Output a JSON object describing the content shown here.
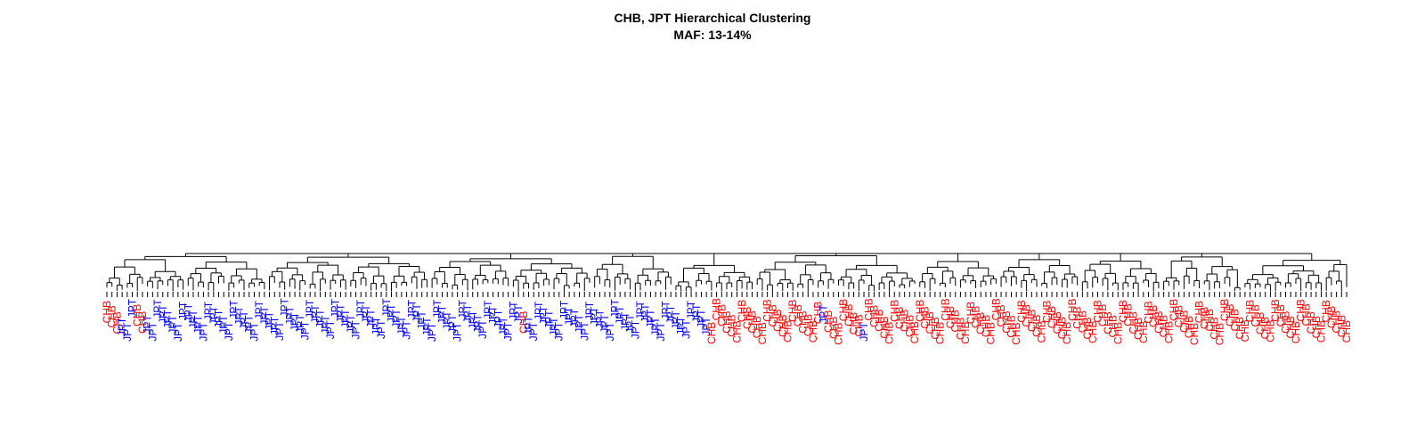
{
  "title_line1": "CHB, JPT Hierarchical Clustering",
  "title_line2": "MAF: 13-14%",
  "colors": {
    "CHB": "#ff0000",
    "JPT": "#0000ff",
    "branch": "#000000"
  },
  "leaves": "CHB CHB CHB JPT JPT JPT CHB CHB JPT JPT JPT JPT JPT JPT JPT JPT JPT JPT JPT JPT JPT JPT JPT JPT JPT JPT JPT JPT JPT JPT JPT JPT JPT JPT JPT JPT JPT JPT JPT JPT JPT JPT JPT JPT JPT JPT JPT JPT JPT JPT JPT JPT JPT JPT JPT JPT JPT JPT JPT JPT JPT JPT JPT JPT JPT JPT JPT JPT JPT JPT JPT JPT JPT JPT JPT JPT JPT JPT JPT JPT JPT JPT CHB JPT JPT JPT JPT JPT JPT JPT JPT JPT JPT JPT JPT JPT JPT JPT JPT JPT JPT JPT JPT JPT JPT JPT JPT JPT JPT JPT JPT JPT JPT JPT JPT JPT JPT JPT JPT CHB CHB CHB CHB CHB CHB CHB CHB CHB CHB CHB CHB CHB CHB CHB CHB CHB CHB CHB CHB CHB CHB JPT CHB CHB CHB CHB CHB CHB CHB JPT CHB CHB CHB CHB CHB CHB CHB CHB CHB CHB CHB CHB CHB CHB CHB CHB CHB CHB CHB CHB CHB CHB CHB CHB CHB CHB CHB CHB CHB CHB CHB CHB CHB CHB CHB CHB CHB CHB CHB CHB CHB CHB CHB CHB CHB CHB CHB CHB CHB CHB CHB CHB CHB CHB CHB CHB CHB CHB CHB CHB CHB CHB CHB CHB CHB CHB CHB CHB CHB CHB CHB CHB CHB CHB CHB CHB CHB CHB CHB CHB CHB CHB CHB CHB CHB CHB CHB CHB CHB CHB CHB CHB CHB CHB CHB"
}
